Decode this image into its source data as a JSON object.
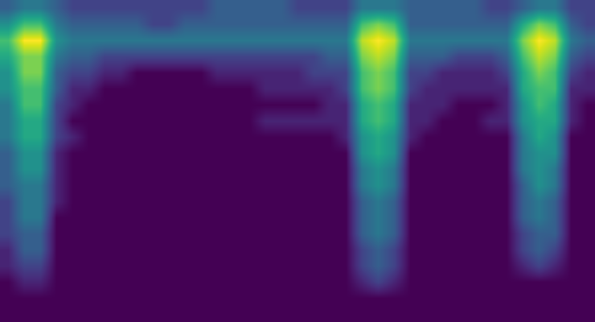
{
  "chart_data": {
    "type": "heatmap",
    "color": "Viridis",
    "tick_labels": false,
    "zlim": [
      0,
      10
    ],
    "cells": [
      [
        3,
        4,
        4,
        3,
        2,
        2,
        2,
        2,
        2,
        2,
        2,
        2,
        2,
        3,
        3,
        3,
        3,
        3,
        2,
        2,
        2,
        2,
        4,
        4,
        4,
        3,
        3,
        3,
        3,
        3,
        2,
        2,
        3,
        4,
        4,
        2,
        2
      ],
      [
        5,
        7,
        7,
        4,
        3,
        3,
        3,
        3,
        3,
        2,
        2,
        3,
        3,
        3,
        3,
        3,
        3,
        3,
        3,
        3,
        3,
        3,
        7,
        8,
        7,
        3,
        3,
        3,
        3,
        3,
        3,
        3,
        6,
        8,
        7,
        3,
        2
      ],
      [
        7,
        10,
        10,
        5,
        4,
        4,
        4,
        4,
        4,
        4,
        4,
        4,
        4,
        4,
        4,
        4,
        4,
        4,
        4,
        4,
        4,
        4,
        9,
        10,
        9,
        4,
        4,
        4,
        4,
        4,
        4,
        4,
        8,
        10,
        9,
        4,
        3
      ],
      [
        6,
        8,
        8,
        4,
        3,
        3,
        2,
        2,
        2,
        2,
        2,
        2,
        2,
        2,
        2,
        2,
        2,
        2,
        2,
        2,
        3,
        3,
        8,
        9,
        8,
        3,
        3,
        3,
        2,
        2,
        2,
        3,
        7,
        9,
        8,
        3,
        2
      ],
      [
        5,
        8,
        8,
        3,
        2,
        2,
        1,
        1,
        0,
        0,
        0,
        0,
        0,
        1,
        1,
        1,
        1,
        1,
        1,
        2,
        2,
        2,
        7,
        8,
        7,
        2,
        2,
        1,
        1,
        1,
        1,
        2,
        6,
        8,
        7,
        2,
        1
      ],
      [
        5,
        7,
        7,
        3,
        1,
        1,
        0,
        0,
        0,
        0,
        0,
        0,
        0,
        0,
        0,
        0,
        1,
        1,
        1,
        1,
        1,
        2,
        7,
        8,
        7,
        2,
        1,
        1,
        1,
        1,
        1,
        1,
        6,
        7,
        7,
        1,
        1
      ],
      [
        4,
        7,
        7,
        2,
        1,
        0,
        0,
        0,
        0,
        0,
        0,
        0,
        0,
        0,
        0,
        0,
        0,
        0,
        0,
        0,
        1,
        1,
        6,
        7,
        6,
        1,
        1,
        1,
        0,
        0,
        0,
        1,
        5,
        7,
        6,
        1,
        0
      ],
      [
        4,
        6,
        6,
        2,
        0,
        0,
        0,
        0,
        0,
        0,
        0,
        0,
        0,
        0,
        0,
        0,
        1,
        1,
        1,
        1,
        1,
        1,
        6,
        7,
        6,
        1,
        1,
        0,
        0,
        0,
        1,
        1,
        5,
        6,
        6,
        1,
        0
      ],
      [
        4,
        6,
        6,
        2,
        1,
        0,
        0,
        0,
        0,
        0,
        0,
        0,
        0,
        0,
        0,
        0,
        0,
        0,
        0,
        0,
        0,
        1,
        5,
        6,
        5,
        1,
        0,
        0,
        0,
        0,
        0,
        0,
        4,
        6,
        5,
        0,
        0
      ],
      [
        3,
        5,
        5,
        1,
        0,
        0,
        0,
        0,
        0,
        0,
        0,
        0,
        0,
        0,
        0,
        0,
        0,
        0,
        0,
        0,
        0,
        0,
        5,
        6,
        5,
        0,
        0,
        0,
        0,
        0,
        0,
        0,
        4,
        5,
        5,
        0,
        0
      ],
      [
        3,
        5,
        5,
        1,
        0,
        0,
        0,
        0,
        0,
        0,
        0,
        0,
        0,
        0,
        0,
        0,
        0,
        0,
        0,
        0,
        0,
        0,
        4,
        5,
        4,
        0,
        0,
        0,
        0,
        0,
        0,
        0,
        4,
        5,
        4,
        0,
        0
      ],
      [
        3,
        4,
        4,
        1,
        0,
        0,
        0,
        0,
        0,
        0,
        0,
        0,
        0,
        0,
        0,
        0,
        0,
        0,
        0,
        0,
        0,
        0,
        4,
        5,
        4,
        0,
        0,
        0,
        0,
        0,
        0,
        0,
        3,
        5,
        4,
        0,
        0
      ],
      [
        2,
        4,
        4,
        1,
        0,
        0,
        0,
        0,
        0,
        0,
        0,
        0,
        0,
        0,
        0,
        0,
        0,
        0,
        0,
        0,
        0,
        0,
        3,
        4,
        3,
        0,
        0,
        0,
        0,
        0,
        0,
        0,
        3,
        4,
        3,
        0,
        0
      ],
      [
        2,
        4,
        4,
        0,
        0,
        0,
        0,
        0,
        0,
        0,
        0,
        0,
        0,
        0,
        0,
        0,
        0,
        0,
        0,
        0,
        0,
        0,
        3,
        4,
        3,
        0,
        0,
        0,
        0,
        0,
        0,
        0,
        3,
        4,
        3,
        0,
        0
      ],
      [
        2,
        3,
        3,
        0,
        0,
        0,
        0,
        0,
        0,
        0,
        0,
        0,
        0,
        0,
        0,
        0,
        0,
        0,
        0,
        0,
        0,
        0,
        3,
        4,
        3,
        0,
        0,
        0,
        0,
        0,
        0,
        0,
        2,
        3,
        3,
        0,
        0
      ],
      [
        1,
        3,
        3,
        0,
        0,
        0,
        0,
        0,
        0,
        0,
        0,
        0,
        0,
        0,
        0,
        0,
        0,
        0,
        0,
        0,
        0,
        0,
        2,
        3,
        2,
        0,
        0,
        0,
        0,
        0,
        0,
        0,
        2,
        3,
        2,
        0,
        0
      ],
      [
        1,
        2,
        2,
        0,
        0,
        0,
        0,
        0,
        0,
        0,
        0,
        0,
        0,
        0,
        0,
        0,
        0,
        0,
        0,
        0,
        0,
        0,
        2,
        3,
        2,
        0,
        0,
        0,
        0,
        0,
        0,
        0,
        1,
        2,
        1,
        0,
        0
      ],
      [
        0,
        1,
        1,
        0,
        0,
        0,
        0,
        0,
        0,
        0,
        0,
        0,
        0,
        0,
        0,
        0,
        0,
        0,
        0,
        0,
        0,
        0,
        1,
        2,
        1,
        0,
        0,
        0,
        0,
        0,
        0,
        0,
        0,
        0,
        0,
        0,
        0
      ],
      [
        0,
        0,
        0,
        0,
        0,
        0,
        0,
        0,
        0,
        0,
        0,
        0,
        0,
        0,
        0,
        0,
        0,
        0,
        0,
        0,
        0,
        0,
        0,
        0,
        0,
        0,
        0,
        0,
        0,
        0,
        0,
        0,
        0,
        0,
        0,
        0,
        0
      ],
      [
        0,
        0,
        0,
        0,
        0,
        0,
        0,
        0,
        0,
        0,
        0,
        0,
        0,
        0,
        0,
        0,
        0,
        0,
        0,
        0,
        0,
        0,
        0,
        0,
        0,
        0,
        0,
        0,
        0,
        0,
        0,
        0,
        0,
        0,
        0,
        0,
        0
      ]
    ]
  }
}
